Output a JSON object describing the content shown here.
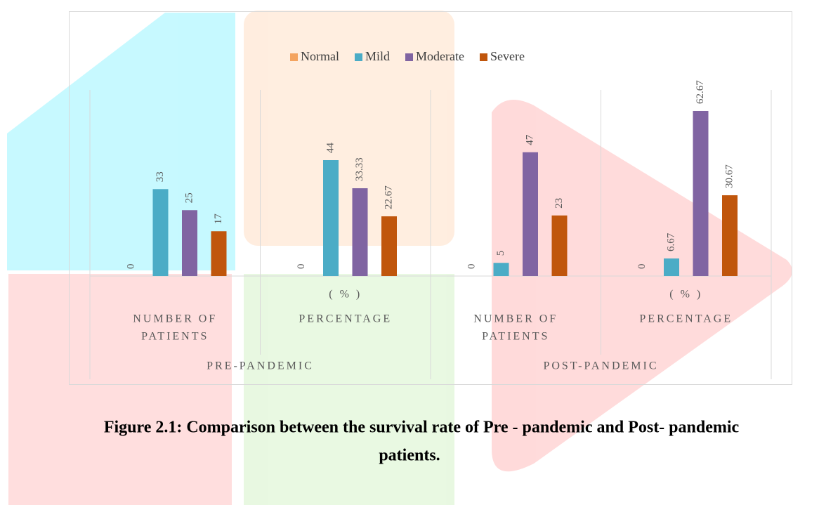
{
  "chart_data": {
    "type": "bar",
    "legend": "top",
    "categories": [
      [
        "NUMBER OF",
        "PATIENTS"
      ],
      [
        "( % )",
        "PERCENTAGE"
      ],
      [
        "NUMBER OF",
        "PATIENTS"
      ],
      [
        "( % )",
        "PERCENTAGE"
      ]
    ],
    "groups": [
      "PRE-PANDEMIC",
      "POST-PANDEMIC"
    ],
    "series": [
      {
        "name": "Normal",
        "color": "#f4a460",
        "values": [
          0,
          0,
          0,
          0
        ]
      },
      {
        "name": "Mild",
        "color": "#4bacc6",
        "values": [
          33,
          44,
          5,
          6.67
        ]
      },
      {
        "name": "Moderate",
        "color": "#8064a2",
        "values": [
          25,
          33.33,
          47,
          62.67
        ]
      },
      {
        "name": "Severe",
        "color": "#c0560c",
        "values": [
          17,
          22.67,
          23,
          30.67
        ]
      }
    ],
    "ylim": [
      0,
      70
    ]
  },
  "caption": [
    "Figure 2.1: Comparison between the survival rate of Pre - pandemic and Post- pandemic",
    "patients."
  ]
}
